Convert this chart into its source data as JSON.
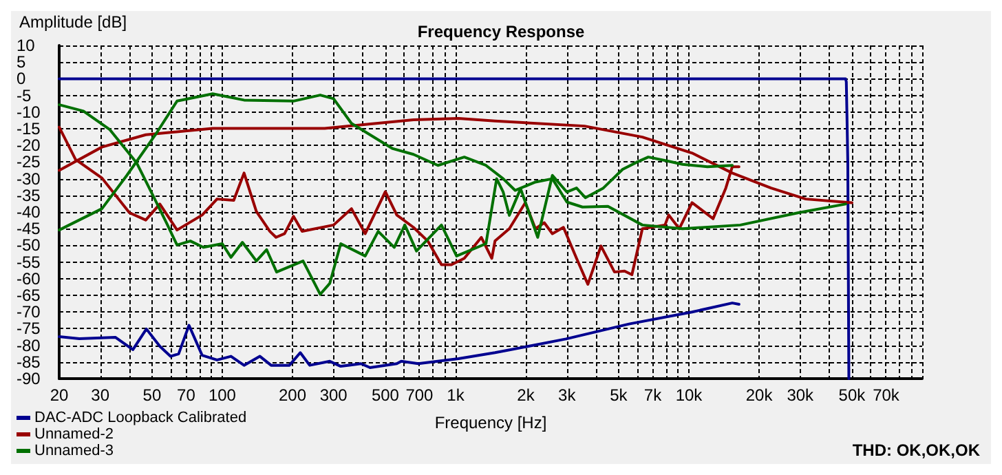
{
  "chart_data": {
    "type": "line",
    "title": "Frequency Response",
    "xlabel": "Frequency [Hz]",
    "ylabel": "Amplitude [dB]",
    "log": "x",
    "grid": true,
    "legend": "bottom left",
    "marker": "none",
    "line_style": "solid",
    "xlim": [
      20,
      100000
    ],
    "xticks": [
      20,
      30,
      {
        "value": 40,
        "label": null
      },
      50,
      {
        "value": 60,
        "label": null
      },
      70,
      {
        "value": 80,
        "label": null
      },
      {
        "value": 90,
        "label": null
      },
      100,
      200,
      300,
      {
        "value": 400,
        "label": null
      },
      500,
      {
        "value": 600,
        "label": null
      },
      700,
      {
        "value": 800,
        "label": null
      },
      {
        "value": 900,
        "label": null
      },
      {
        "value": 1000,
        "label": "1k"
      },
      {
        "value": 2000,
        "label": "2k"
      },
      {
        "value": 3000,
        "label": "3k"
      },
      {
        "value": 4000,
        "label": null
      },
      {
        "value": 5000,
        "label": "5k"
      },
      {
        "value": 6000,
        "label": null
      },
      {
        "value": 7000,
        "label": "7k"
      },
      {
        "value": 8000,
        "label": null
      },
      {
        "value": 9000,
        "label": null
      },
      {
        "value": 10000,
        "label": "10k"
      },
      {
        "value": 20000,
        "label": "20k"
      },
      {
        "value": 30000,
        "label": "30k"
      },
      {
        "value": 40000,
        "label": null
      },
      {
        "value": 50000,
        "label": "50k"
      },
      {
        "value": 60000,
        "label": null
      },
      {
        "value": 70000,
        "label": "70k"
      },
      {
        "value": 80000,
        "label": null
      },
      {
        "value": 90000,
        "label": null
      },
      {
        "value": 100000,
        "label": null
      }
    ],
    "ylim": [
      -90,
      10
    ],
    "yticks": [
      -90,
      -85,
      -80,
      -75,
      -70,
      -65,
      -60,
      -55,
      -50,
      -45,
      -40,
      -35,
      -30,
      -25,
      -20,
      -15,
      -10,
      -5,
      0,
      5,
      10
    ],
    "annotations": [
      "THD: OK,OK,OK"
    ],
    "series": [
      {
        "name": "DAC-ADC Loopback Calibrated",
        "color": "#000090",
        "x": [
          20,
          47000,
          47300,
          47600,
          48000,
          48500
        ],
        "values": [
          0,
          0,
          -1,
          -11,
          -25,
          -90
        ]
      },
      {
        "color": "#000090",
        "x": [
          20,
          24.4,
          34.8,
          41.4,
          47.3,
          54,
          60,
          65,
          72,
          82,
          95,
          109,
          124,
          145,
          162,
          194,
          216,
          237,
          289,
          322,
          393,
          430,
          560,
          585,
          692,
          1030,
          1476,
          2052,
          2972,
          5540,
          10320,
          15350,
          16400
        ],
        "values": [
          -77.4,
          -78,
          -77.6,
          -81.3,
          -75.1,
          -80.3,
          -83.3,
          -82.6,
          -74,
          -83,
          -84.4,
          -83.3,
          -86,
          -83.3,
          -86,
          -86,
          -82.2,
          -86,
          -84.8,
          -86.3,
          -85.5,
          -86.7,
          -85.5,
          -84.8,
          -85.5,
          -84,
          -82.2,
          -80.3,
          -78.1,
          -73.6,
          -70,
          -67.3,
          -67.7
        ]
      },
      {
        "name": "Unnamed-2",
        "color": "#990000",
        "x": [
          20,
          30.5,
          47,
          91,
          275,
          660,
          1030,
          1476,
          3570,
          6320,
          10320,
          15350,
          22500,
          31700,
          50000
        ],
        "values": [
          -27.5,
          -20.5,
          -16.8,
          -14.9,
          -14.9,
          -12.3,
          -11.9,
          -12.7,
          -14.2,
          -17.5,
          -22.3,
          -28.3,
          -32.8,
          -36.1,
          -37.2
        ]
      },
      {
        "color": "#990000",
        "x": [
          20,
          23.5,
          30.5,
          40,
          47,
          54,
          64,
          82,
          95,
          112,
          124,
          140,
          160,
          170,
          185,
          202,
          220,
          300,
          358,
          410,
          500,
          560,
          660,
          760,
          870,
          960,
          1090,
          1290,
          1430,
          1476,
          1700,
          1990,
          2200,
          2400,
          2600,
          2900,
          3300,
          3690,
          4200,
          4800,
          5300,
          5700,
          6320,
          7900,
          8200,
          9100,
          10320,
          12700,
          14400,
          15350,
          16400
        ],
        "values": [
          -14.5,
          -24.2,
          -29.8,
          -40.2,
          -42.4,
          -37.6,
          -45.4,
          -40.9,
          -36.1,
          -36.5,
          -28.3,
          -39.8,
          -45.8,
          -47.6,
          -46.5,
          -41.3,
          -45.8,
          -43.9,
          -39,
          -46.5,
          -33.9,
          -40.9,
          -44.6,
          -48.7,
          -55.8,
          -55.8,
          -53.9,
          -47.6,
          -53.9,
          -48.7,
          -45,
          -37.2,
          -45,
          -43.2,
          -46.5,
          -44.6,
          -53.9,
          -61.7,
          -50.2,
          -58,
          -57.7,
          -58.8,
          -45,
          -43.9,
          -40.9,
          -45,
          -37.2,
          -42,
          -32.8,
          -26.4,
          -26.4
        ]
      },
      {
        "name": "Unnamed-3",
        "color": "#007000",
        "x": [
          20,
          30.5,
          39,
          51.7,
          64,
          91,
          124,
          202,
          263,
          300,
          358,
          535,
          660,
          840,
          1090,
          1350,
          1600,
          1800,
          2200,
          2600,
          3000,
          3500,
          4500,
          6320,
          9400,
          16600,
          29500,
          47000
        ],
        "values": [
          -45.4,
          -39,
          -29,
          -16.8,
          -6.7,
          -4.5,
          -6.4,
          -6.7,
          -4.9,
          -6,
          -13.4,
          -20.9,
          -22.7,
          -26,
          -23.5,
          -26,
          -30,
          -33.5,
          -31,
          -30,
          -37,
          -38.5,
          -38.3,
          -43.9,
          -45,
          -43.9,
          -40.2,
          -37.6
        ]
      },
      {
        "color": "#007000",
        "x": [
          20,
          25.4,
          33,
          43,
          51.7,
          57.6,
          64,
          73,
          83,
          100,
          109,
          122,
          140,
          155,
          171,
          222,
          263,
          289,
          322,
          410,
          466,
          546,
          606,
          680,
          870,
          1010,
          1350,
          1500,
          1600,
          1700,
          1900,
          2250,
          2600,
          3000,
          3300,
          3600,
          4300,
          5200,
          6000,
          6700,
          8000,
          9400,
          12000,
          15350
        ],
        "values": [
          -7.8,
          -9.7,
          -15.3,
          -25.3,
          -36.5,
          -43.2,
          -49.9,
          -48.7,
          -50.6,
          -49.5,
          -53.6,
          -49.1,
          -54.7,
          -51.3,
          -58,
          -54.7,
          -64.7,
          -61.4,
          -49.5,
          -53.2,
          -45.8,
          -50.6,
          -43.9,
          -51.7,
          -43.9,
          -53.2,
          -49.5,
          -30,
          -34,
          -41,
          -33,
          -47.6,
          -29,
          -34,
          -32.8,
          -35.7,
          -32.8,
          -27.2,
          -25,
          -23.5,
          -24.6,
          -25.7,
          -26.4,
          -26
        ]
      }
    ]
  }
}
